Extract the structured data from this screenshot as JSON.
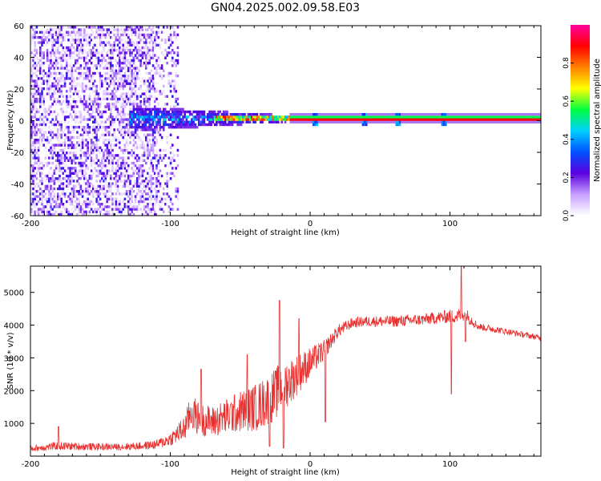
{
  "title": "GN04.2025.002.09.58.E03",
  "colors": {
    "snr_line": "#e8302f",
    "axis": "#000000"
  },
  "chart_data": [
    {
      "type": "heatmap",
      "xlabel": "Height of straight line (km)",
      "ylabel": "Frequency (Hz)",
      "xlim": [
        -200,
        165
      ],
      "ylim": [
        -60,
        60
      ],
      "x_ticks": [
        -200,
        -100,
        0,
        100
      ],
      "y_ticks": [
        -60,
        -40,
        -20,
        0,
        20,
        40,
        60
      ],
      "colorbar": {
        "label": "Normalized spectral amplitude",
        "range": [
          0,
          1
        ],
        "ticks": [
          0.0,
          0.2,
          0.4,
          0.6,
          0.8
        ],
        "tick_labels": [
          "0.0",
          "0.2",
          "0.4",
          "0.6",
          "0.8"
        ],
        "colormap": [
          "#ffffff",
          "#c8a0ff",
          "#5a00e0",
          "#0050ff",
          "#00d0ff",
          "#00ff40",
          "#ffff00",
          "#ff8000",
          "#ff0000",
          "#ff00a0"
        ]
      },
      "features": {
        "noise_region_x": [
          -200,
          -95
        ],
        "transition_region_x": [
          -130,
          -15
        ],
        "line_region_x": [
          -15,
          165
        ],
        "line_frequency_hz": 0.5,
        "line_amplitude": 0.9,
        "bright_points_x": [
          3,
          38,
          62,
          95
        ]
      }
    },
    {
      "type": "line",
      "xlabel": "Height of straight line (km)",
      "ylabel": "SNR (10 * v/v)",
      "xlim": [
        -200,
        165
      ],
      "ylim": [
        0,
        5800
      ],
      "x_ticks": [
        -200,
        -100,
        0,
        100
      ],
      "y_ticks": [
        1000,
        2000,
        3000,
        4000,
        5000
      ],
      "series": [
        {
          "color": "#e8302f",
          "envelope_x": [
            -200,
            -180,
            -160,
            -140,
            -120,
            -110,
            -100,
            -90,
            -85,
            -80,
            -70,
            -60,
            -50,
            -40,
            -35,
            -25,
            -20,
            -15,
            -10,
            -5,
            0,
            5,
            10,
            15,
            20,
            30,
            40,
            60,
            80,
            90,
            100,
            105,
            110,
            120,
            140,
            165
          ],
          "envelope_y": [
            220,
            300,
            280,
            270,
            300,
            340,
            500,
            800,
            1300,
            1100,
            1000,
            1150,
            1300,
            1400,
            1500,
            1800,
            2100,
            2200,
            2400,
            2600,
            2800,
            3000,
            3200,
            3500,
            3800,
            4050,
            4100,
            4100,
            4150,
            4200,
            4250,
            4250,
            4350,
            3950,
            3800,
            3600
          ],
          "spread_y": [
            120,
            160,
            140,
            130,
            150,
            180,
            260,
            500,
            700,
            650,
            600,
            700,
            800,
            900,
            950,
            1000,
            1000,
            900,
            800,
            700,
            600,
            500,
            400,
            300,
            250,
            200,
            200,
            220,
            220,
            240,
            260,
            280,
            300,
            140,
            120,
            110
          ],
          "spikes": [
            {
              "x": -180,
              "y": 900
            },
            {
              "x": -78,
              "y": 2650
            },
            {
              "x": -45,
              "y": 3100
            },
            {
              "x": -29,
              "y": 300
            },
            {
              "x": -22,
              "y": 4750
            },
            {
              "x": -19,
              "y": 250
            },
            {
              "x": -8,
              "y": 4200
            },
            {
              "x": 11,
              "y": 1050
            },
            {
              "x": 101,
              "y": 1900
            },
            {
              "x": 108,
              "y": 5800
            },
            {
              "x": 111,
              "y": 3500
            }
          ]
        }
      ]
    }
  ]
}
